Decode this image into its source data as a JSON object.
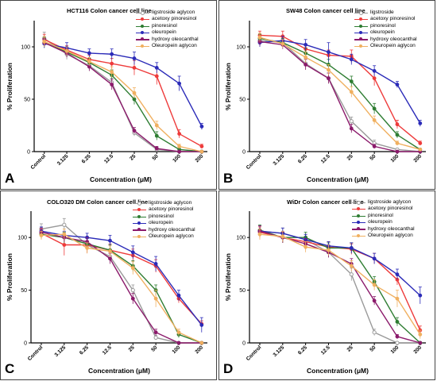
{
  "chart_data": [
    {
      "panel": "A",
      "type": "line",
      "title": "HCT116 Colon cancer cell line",
      "xlabel": "Concentration (μM)",
      "ylabel": "% Proliferation",
      "categories": [
        "Control",
        "3.125",
        "6.25",
        "12.5",
        "25",
        "50",
        "100",
        "200"
      ],
      "ylim": [
        0,
        125
      ],
      "yticks": [
        0,
        50,
        100
      ],
      "legend": "top-right",
      "series": [
        {
          "name": "ligstroside aglycon",
          "color": "#9a9a9a",
          "marker": "open-circle",
          "values": [
            108,
            93,
            82,
            66,
            18,
            2,
            0,
            0
          ],
          "errors": [
            6,
            5,
            5,
            4,
            3,
            2,
            1,
            1
          ]
        },
        {
          "name": "acetoxy pinoresinol",
          "color": "#ee3b3b",
          "marker": "circle",
          "values": [
            107,
            97,
            88,
            84,
            80,
            72,
            17,
            5
          ],
          "errors": [
            5,
            4,
            4,
            5,
            7,
            8,
            4,
            2
          ]
        },
        {
          "name": "pinoresinol",
          "color": "#2e7d32",
          "marker": "circle",
          "values": [
            104,
            95,
            85,
            73,
            50,
            15,
            2,
            0
          ],
          "errors": [
            5,
            4,
            4,
            5,
            5,
            4,
            1,
            1
          ]
        },
        {
          "name": "oleuropein",
          "color": "#2b2bb8",
          "marker": "circle",
          "values": [
            103,
            99,
            94,
            93,
            89,
            80,
            65,
            24
          ],
          "errors": [
            4,
            5,
            4,
            5,
            6,
            5,
            7,
            3
          ]
        },
        {
          "name": "hydroxy oleocanthal",
          "color": "#8b1a6b",
          "marker": "circle",
          "values": [
            104,
            94,
            81,
            64,
            20,
            3,
            0,
            0
          ],
          "errors": [
            4,
            4,
            4,
            5,
            3,
            2,
            1,
            1
          ]
        },
        {
          "name": "Oleuropein aglycon",
          "color": "#f0b060",
          "marker": "circle",
          "values": [
            105,
            96,
            86,
            76,
            56,
            25,
            5,
            0
          ],
          "errors": [
            5,
            4,
            4,
            5,
            5,
            4,
            2,
            1
          ]
        }
      ]
    },
    {
      "panel": "B",
      "type": "line",
      "title": "SW48 Colon cancer cell line",
      "xlabel": "Concentration (μM)",
      "ylabel": "% Proliferation",
      "categories": [
        "Control",
        "3.125",
        "6.25",
        "12.5",
        "25",
        "50",
        "100",
        "200"
      ],
      "ylim": [
        0,
        125
      ],
      "yticks": [
        0,
        50,
        100
      ],
      "legend": "top-right",
      "series": [
        {
          "name": "ligstroside",
          "color": "#9a9a9a",
          "marker": "open-circle",
          "values": [
            106,
            104,
            84,
            70,
            29,
            8,
            2,
            0
          ],
          "errors": [
            5,
            4,
            5,
            5,
            4,
            3,
            1,
            1
          ]
        },
        {
          "name": "acetoxy pinoresinol",
          "color": "#ee3b3b",
          "marker": "circle",
          "values": [
            111,
            110,
            98,
            92,
            91,
            70,
            26,
            8
          ],
          "errors": [
            4,
            5,
            4,
            5,
            6,
            7,
            4,
            2
          ]
        },
        {
          "name": "pinoresinol",
          "color": "#2e7d32",
          "marker": "circle",
          "values": [
            108,
            104,
            94,
            83,
            67,
            41,
            16,
            2
          ],
          "errors": [
            4,
            4,
            5,
            5,
            5,
            5,
            3,
            1
          ]
        },
        {
          "name": "oleuropein",
          "color": "#2b2bb8",
          "marker": "circle",
          "values": [
            104,
            106,
            102,
            95,
            88,
            77,
            64,
            27
          ],
          "errors": [
            4,
            4,
            5,
            9,
            5,
            5,
            3,
            3
          ]
        },
        {
          "name": "hydroxy oleocanthal",
          "color": "#8b1a6b",
          "marker": "circle",
          "values": [
            105,
            102,
            83,
            70,
            22,
            5,
            0,
            0
          ],
          "errors": [
            4,
            4,
            5,
            5,
            4,
            2,
            1,
            1
          ]
        },
        {
          "name": "Oleuropein aglycon",
          "color": "#f0b060",
          "marker": "circle",
          "values": [
            109,
            103,
            90,
            78,
            57,
            30,
            8,
            2
          ],
          "errors": [
            4,
            4,
            5,
            5,
            5,
            4,
            2,
            1
          ]
        }
      ]
    },
    {
      "panel": "C",
      "type": "line",
      "title": "COLO320 DM Colon cancer cell line",
      "xlabel": "Concentration (μM)",
      "ylabel": "% Proliferation",
      "categories": [
        "Control",
        "3.125",
        "6.25",
        "12.5",
        "25",
        "50",
        "100",
        "200"
      ],
      "ylim": [
        0,
        125
      ],
      "yticks": [
        0,
        50,
        100
      ],
      "legend": "top-right",
      "series": [
        {
          "name": "ligstroside aglycon",
          "color": "#9a9a9a",
          "marker": "open-circle",
          "values": [
            108,
            112,
            93,
            82,
            50,
            5,
            0,
            0
          ],
          "errors": [
            5,
            6,
            7,
            5,
            5,
            2,
            1,
            1
          ]
        },
        {
          "name": "acetoxy pinoresinol",
          "color": "#ee3b3b",
          "marker": "circle",
          "values": [
            104,
            93,
            93,
            88,
            83,
            73,
            42,
            18
          ],
          "errors": [
            4,
            10,
            8,
            6,
            6,
            6,
            4,
            3
          ]
        },
        {
          "name": "pinoresinol",
          "color": "#2e7d32",
          "marker": "circle",
          "values": [
            103,
            100,
            94,
            88,
            73,
            50,
            8,
            0
          ],
          "errors": [
            4,
            5,
            5,
            5,
            5,
            5,
            3,
            1
          ]
        },
        {
          "name": "oleuropein",
          "color": "#2b2bb8",
          "marker": "circle",
          "values": [
            106,
            102,
            100,
            97,
            86,
            75,
            45,
            17
          ],
          "errors": [
            4,
            4,
            4,
            5,
            6,
            7,
            5,
            7
          ]
        },
        {
          "name": "hydroxy oleocanthal",
          "color": "#8b1a6b",
          "marker": "circle",
          "values": [
            105,
            100,
            96,
            80,
            42,
            10,
            0,
            0
          ],
          "errors": [
            4,
            4,
            4,
            5,
            5,
            3,
            1,
            1
          ]
        },
        {
          "name": "Oleuropein aglycon",
          "color": "#f0b060",
          "marker": "circle",
          "values": [
            102,
            103,
            90,
            87,
            71,
            42,
            10,
            0
          ],
          "errors": [
            4,
            5,
            5,
            5,
            6,
            8,
            3,
            1
          ]
        }
      ]
    },
    {
      "panel": "D",
      "type": "line",
      "title": "WiDr Colon cancer cell line",
      "xlabel": "Concentration (μM)",
      "ylabel": "% Proliferation",
      "categories": [
        "Control",
        "3.125",
        "6.25",
        "12.5",
        "25",
        "50",
        "100",
        "200"
      ],
      "ylim": [
        0,
        125
      ],
      "yticks": [
        0,
        50,
        100
      ],
      "legend": "top-right",
      "series": [
        {
          "name": "ligstroside aglycon",
          "color": "#9a9a9a",
          "marker": "open-circle",
          "values": [
            106,
            104,
            98,
            86,
            65,
            10,
            0,
            0
          ],
          "errors": [
            5,
            5,
            5,
            5,
            6,
            3,
            1,
            1
          ]
        },
        {
          "name": "acetoxy pinoresinol",
          "color": "#ee3b3b",
          "marker": "circle",
          "values": [
            105,
            100,
            96,
            91,
            89,
            80,
            60,
            12
          ],
          "errors": [
            5,
            5,
            5,
            5,
            5,
            5,
            5,
            4
          ]
        },
        {
          "name": "pinoresinol",
          "color": "#2e7d32",
          "marker": "circle",
          "values": [
            107,
            100,
            100,
            90,
            90,
            58,
            20,
            0
          ],
          "errors": [
            5,
            5,
            5,
            5,
            5,
            5,
            4,
            1
          ]
        },
        {
          "name": "oleuropein",
          "color": "#2b2bb8",
          "marker": "circle",
          "values": [
            106,
            104,
            98,
            92,
            90,
            80,
            65,
            45
          ],
          "errors": [
            5,
            5,
            5,
            4,
            5,
            5,
            5,
            8
          ]
        },
        {
          "name": "hydroxy oleocanthal",
          "color": "#8b1a6b",
          "marker": "circle",
          "values": [
            106,
            100,
            94,
            86,
            75,
            40,
            6,
            0
          ],
          "errors": [
            5,
            5,
            5,
            5,
            5,
            4,
            2,
            1
          ]
        },
        {
          "name": "Oleuropein aglycon",
          "color": "#f0b060",
          "marker": "circle",
          "values": [
            103,
            101,
            91,
            88,
            73,
            55,
            42,
            8
          ],
          "errors": [
            5,
            5,
            5,
            5,
            5,
            5,
            8,
            4
          ]
        }
      ]
    }
  ]
}
